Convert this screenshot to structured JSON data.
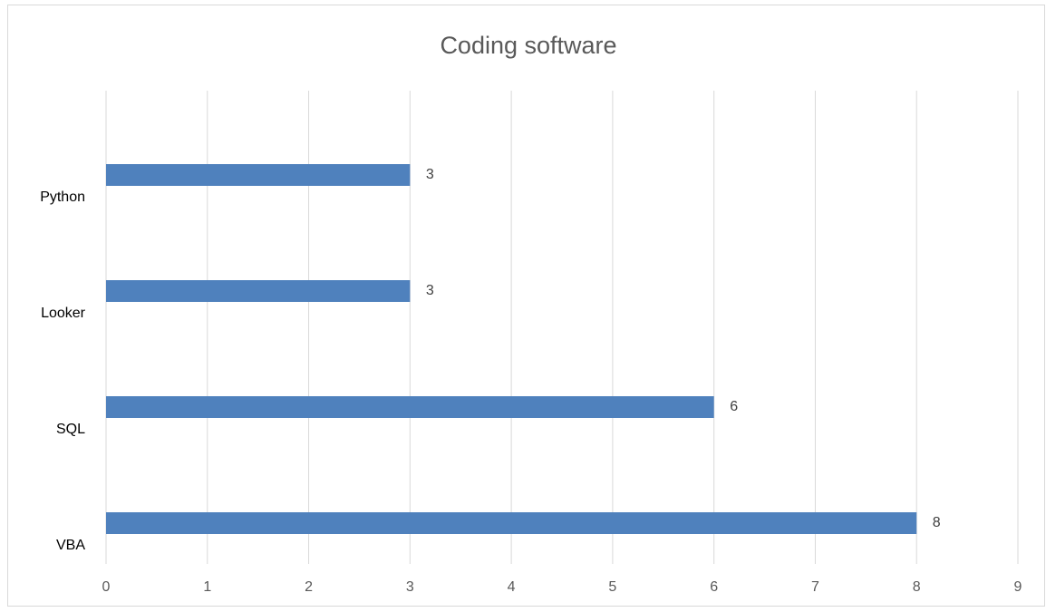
{
  "chart_data": {
    "type": "bar",
    "orientation": "horizontal",
    "title": "Coding software",
    "categories": [
      "Python",
      "Looker",
      "SQL",
      "VBA"
    ],
    "values": [
      3,
      3,
      6,
      8
    ],
    "color": "#4f81bd",
    "xlim": [
      0,
      9
    ],
    "xticks": [
      0,
      1,
      2,
      3,
      4,
      5,
      6,
      7,
      8,
      9
    ],
    "grid": true
  }
}
